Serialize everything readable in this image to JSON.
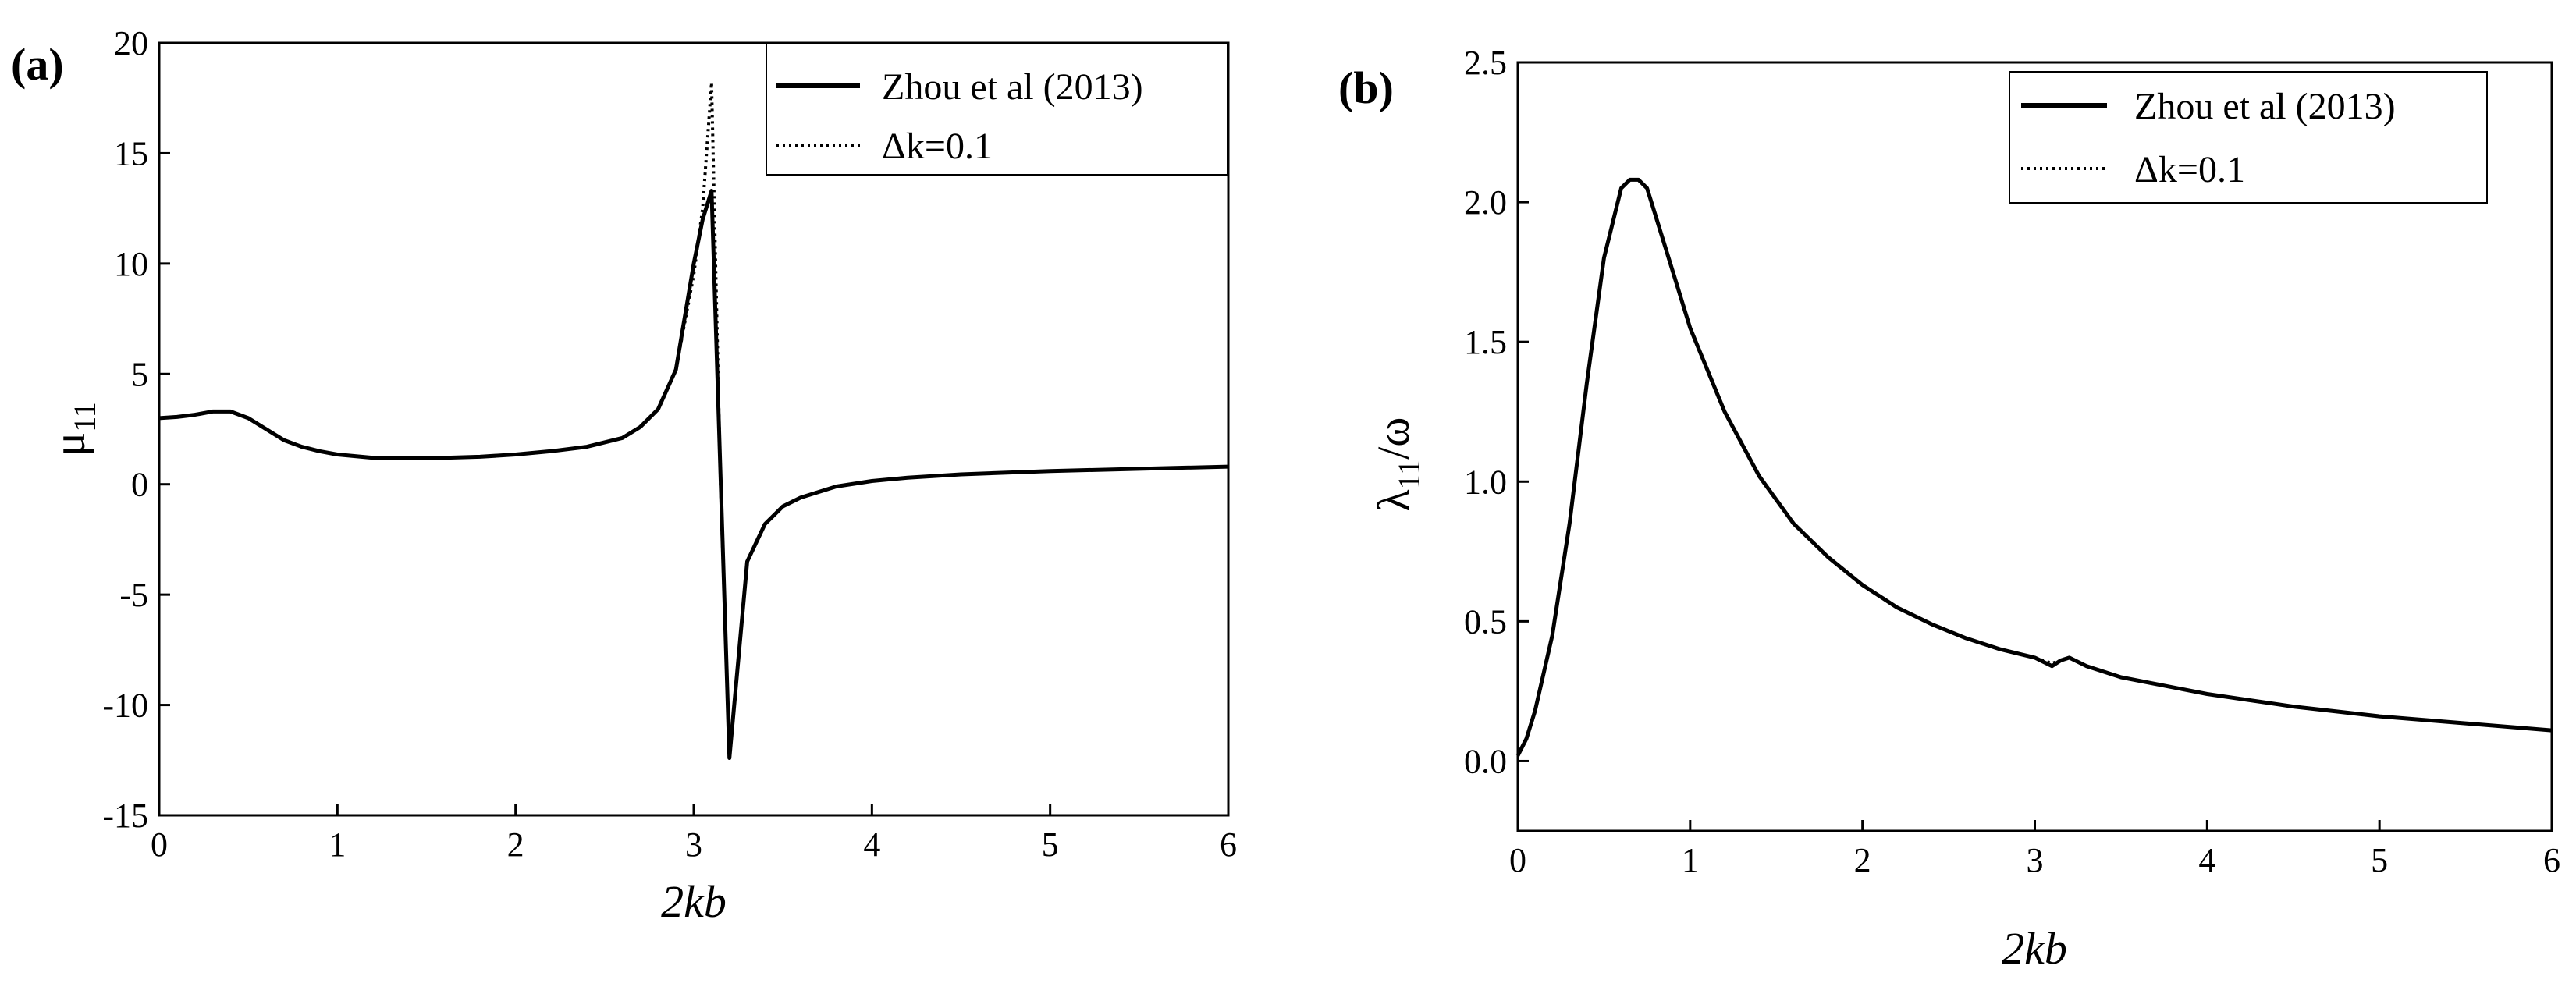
{
  "chart_data": [
    {
      "panel_label": "(a)",
      "type": "line",
      "xlabel": "2kb",
      "ylabel": "μ11",
      "ylabel_base": "μ",
      "ylabel_sub": "11",
      "xlim": [
        0,
        6
      ],
      "ylim": [
        -15,
        20
      ],
      "xticks": [
        0,
        1,
        2,
        3,
        4,
        5,
        6
      ],
      "xtick_labels": [
        "0",
        "1",
        "2",
        "3",
        "4",
        "5",
        "6"
      ],
      "yticks": [
        -15,
        -10,
        -5,
        0,
        5,
        10,
        15,
        20
      ],
      "ytick_labels": [
        "-15",
        "-10",
        "-5",
        "0",
        "5",
        "10",
        "15",
        "20"
      ],
      "grid": false,
      "legend_position": "top-right",
      "series": [
        {
          "name": "Zhou et al (2013)",
          "style": "solid",
          "x": [
            0,
            0.1,
            0.2,
            0.3,
            0.4,
            0.5,
            0.6,
            0.7,
            0.8,
            0.9,
            1.0,
            1.2,
            1.4,
            1.6,
            1.8,
            2.0,
            2.2,
            2.4,
            2.6,
            2.7,
            2.8,
            2.9,
            3.0,
            3.05,
            3.1,
            3.2,
            3.3,
            3.4,
            3.5,
            3.6,
            3.8,
            4.0,
            4.2,
            4.5,
            5.0,
            5.5,
            6.0
          ],
          "y": [
            3.0,
            3.05,
            3.15,
            3.3,
            3.3,
            3.0,
            2.5,
            2.0,
            1.7,
            1.5,
            1.35,
            1.2,
            1.2,
            1.2,
            1.25,
            1.35,
            1.5,
            1.7,
            2.1,
            2.6,
            3.4,
            5.2,
            10.0,
            12.0,
            13.3,
            -12.4,
            -3.5,
            -1.8,
            -1.0,
            -0.6,
            -0.1,
            0.15,
            0.3,
            0.45,
            0.6,
            0.7,
            0.8
          ]
        },
        {
          "name": "Δk=0.1",
          "style": "dotted",
          "x": [
            0,
            0.1,
            0.2,
            0.3,
            0.4,
            0.5,
            0.6,
            0.7,
            0.8,
            0.9,
            1.0,
            1.2,
            1.4,
            1.6,
            1.8,
            2.0,
            2.2,
            2.4,
            2.6,
            2.7,
            2.8,
            2.9,
            3.0,
            3.05,
            3.1,
            3.15,
            3.2,
            3.3,
            3.4,
            3.5,
            3.6,
            3.8,
            4.0,
            4.2,
            4.5,
            5.0,
            5.5,
            6.0
          ],
          "y": [
            3.0,
            3.05,
            3.15,
            3.3,
            3.3,
            3.0,
            2.5,
            2.0,
            1.7,
            1.5,
            1.35,
            1.2,
            1.2,
            1.2,
            1.25,
            1.35,
            1.5,
            1.7,
            2.1,
            2.6,
            3.4,
            5.2,
            9.5,
            12.5,
            18.2,
            0.0,
            -12.4,
            -3.5,
            -1.8,
            -1.0,
            -0.6,
            -0.1,
            0.15,
            0.3,
            0.45,
            0.6,
            0.7,
            0.8
          ]
        }
      ]
    },
    {
      "panel_label": "(b)",
      "type": "line",
      "xlabel": "2kb",
      "ylabel": "λ11/ω",
      "ylabel_base": "λ",
      "ylabel_sub": "11",
      "ylabel_tail": "/ω",
      "xlim": [
        0,
        6
      ],
      "ylim": [
        -0.25,
        2.5
      ],
      "xticks": [
        0,
        1,
        2,
        3,
        4,
        5,
        6
      ],
      "xtick_labels": [
        "0",
        "1",
        "2",
        "3",
        "4",
        "5",
        "6"
      ],
      "yticks": [
        0.0,
        0.5,
        1.0,
        1.5,
        2.0,
        2.5
      ],
      "ytick_labels": [
        "0.0",
        "0.5",
        "1.0",
        "1.5",
        "2.0",
        "2.5"
      ],
      "grid": false,
      "legend_position": "top-right",
      "series": [
        {
          "name": "Zhou et al (2013)",
          "style": "solid",
          "x": [
            0,
            0.05,
            0.1,
            0.2,
            0.3,
            0.4,
            0.5,
            0.6,
            0.65,
            0.7,
            0.75,
            0.8,
            0.9,
            1.0,
            1.2,
            1.4,
            1.6,
            1.8,
            2.0,
            2.2,
            2.4,
            2.6,
            2.8,
            3.0,
            3.1,
            3.15,
            3.2,
            3.3,
            3.5,
            4.0,
            4.5,
            5.0,
            5.5,
            6.0
          ],
          "y": [
            0.02,
            0.08,
            0.18,
            0.45,
            0.85,
            1.35,
            1.8,
            2.05,
            2.08,
            2.08,
            2.05,
            1.95,
            1.75,
            1.55,
            1.25,
            1.02,
            0.85,
            0.73,
            0.63,
            0.55,
            0.49,
            0.44,
            0.4,
            0.37,
            0.34,
            0.36,
            0.37,
            0.34,
            0.3,
            0.24,
            0.195,
            0.16,
            0.135,
            0.11
          ]
        },
        {
          "name": "Δk=0.1",
          "style": "dotted",
          "x": [
            0,
            0.05,
            0.1,
            0.2,
            0.3,
            0.4,
            0.5,
            0.6,
            0.65,
            0.7,
            0.75,
            0.8,
            0.9,
            1.0,
            1.2,
            1.4,
            1.6,
            1.8,
            2.0,
            2.2,
            2.4,
            2.6,
            2.8,
            3.0,
            3.1,
            3.15,
            3.2,
            3.3,
            3.5,
            4.0,
            4.5,
            5.0,
            5.5,
            6.0
          ],
          "y": [
            0.02,
            0.08,
            0.18,
            0.45,
            0.85,
            1.35,
            1.8,
            2.05,
            2.08,
            2.08,
            2.05,
            1.95,
            1.75,
            1.55,
            1.25,
            1.02,
            0.85,
            0.73,
            0.63,
            0.55,
            0.49,
            0.44,
            0.4,
            0.37,
            0.35,
            0.36,
            0.37,
            0.34,
            0.3,
            0.24,
            0.195,
            0.16,
            0.135,
            0.11
          ]
        }
      ]
    }
  ]
}
